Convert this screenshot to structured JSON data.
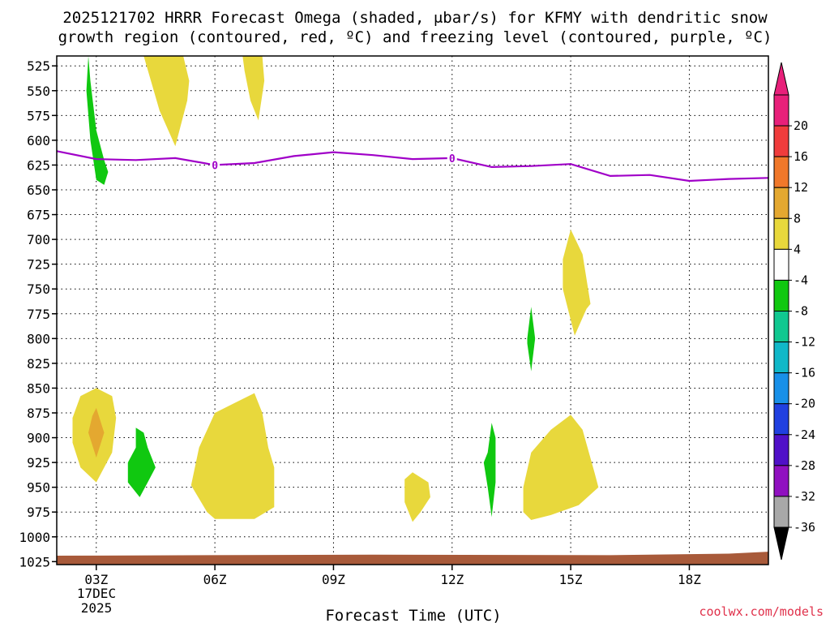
{
  "chart_data": {
    "type": "contour",
    "title_line1": "2025121702 HRRR Forecast Omega (shaded, μbar/s) for KFMY with dendritic snow",
    "title_line2": "growth region (contoured, red, ºC) and freezing level (contoured, purple, ºC)",
    "xlabel": "Forecast Time (UTC)",
    "x_ticks": [
      "03Z",
      "06Z",
      "09Z",
      "12Z",
      "15Z",
      "18Z"
    ],
    "x_tick_hours": [
      3,
      6,
      9,
      12,
      15,
      18
    ],
    "x_range_hours": [
      2.0,
      20.0
    ],
    "date_label_line1": "17DEC",
    "date_label_line2": "2025",
    "y_ticks": [
      "525",
      "550",
      "575",
      "600",
      "625",
      "650",
      "675",
      "700",
      "725",
      "750",
      "775",
      "800",
      "825",
      "850",
      "875",
      "900",
      "925",
      "950",
      "975",
      "1000",
      "1025"
    ],
    "y_range_hpa": [
      515,
      1028
    ],
    "colorbar": {
      "labels": [
        "20",
        "16",
        "12",
        "8",
        "4",
        "-4",
        "-8",
        "-12",
        "-16",
        "-20",
        "-24",
        "-28",
        "-32",
        "-36"
      ],
      "bins": [
        {
          "lo": 20,
          "hi": 24,
          "color": "#e8207a"
        },
        {
          "lo": 16,
          "hi": 20,
          "color": "#f03c3c"
        },
        {
          "lo": 12,
          "hi": 16,
          "color": "#f0782a"
        },
        {
          "lo": 8,
          "hi": 12,
          "color": "#e4a830"
        },
        {
          "lo": 4,
          "hi": 8,
          "color": "#e8d83c"
        },
        {
          "lo": -4,
          "hi": 4,
          "color": "#ffffff"
        },
        {
          "lo": -8,
          "hi": -4,
          "color": "#10c810"
        },
        {
          "lo": -12,
          "hi": -8,
          "color": "#10c890"
        },
        {
          "lo": -16,
          "hi": -12,
          "color": "#10b8c8"
        },
        {
          "lo": -20,
          "hi": -16,
          "color": "#1890e8"
        },
        {
          "lo": -24,
          "hi": -20,
          "color": "#2040e0"
        },
        {
          "lo": -28,
          "hi": -24,
          "color": "#5010c8"
        },
        {
          "lo": -32,
          "hi": -28,
          "color": "#9010c0"
        },
        {
          "lo": -36,
          "hi": -32,
          "color": "#a8a8a8"
        }
      ],
      "top_arrow_color": "#e8207a",
      "bottom_arrow_color": "#000000"
    },
    "freezing_level": {
      "label": "0",
      "color": "#a000c8",
      "hours": [
        2.0,
        3.0,
        4.0,
        5.0,
        6.0,
        7.0,
        8.0,
        9.0,
        10.0,
        11.0,
        12.0,
        13.0,
        14.0,
        15.0,
        16.0,
        17.0,
        18.0,
        19.0,
        20.0
      ],
      "pressure": [
        611,
        619,
        620,
        618,
        625,
        623,
        616,
        612,
        615,
        619,
        618,
        627,
        626,
        624,
        636,
        635,
        641,
        639,
        638
      ],
      "label_hours": [
        6.0,
        12.0
      ]
    },
    "omega_regions": [
      {
        "bin": "-8..-4",
        "color": "#10c810",
        "hours": [
          2.8,
          2.85,
          3.0,
          3.2,
          3.3,
          3.2,
          3.0,
          2.85,
          2.75
        ],
        "pressure": [
          515,
          540,
          590,
          620,
          632,
          645,
          640,
          600,
          550
        ]
      },
      {
        "bin": "4..8",
        "color": "#e8d83c",
        "hours": [
          5.2,
          5.35,
          5.3,
          5.0,
          4.6,
          4.2
        ],
        "pressure": [
          515,
          540,
          560,
          606,
          570,
          515
        ]
      },
      {
        "bin": "4..8",
        "color": "#e8d83c",
        "hours": [
          7.2,
          7.25,
          7.1,
          6.9,
          6.75,
          6.7
        ],
        "pressure": [
          515,
          540,
          580,
          560,
          530,
          515
        ]
      },
      {
        "bin": "4..8",
        "color": "#e8d83c",
        "hours": [
          2.4,
          2.6,
          3.0,
          3.4,
          3.5,
          3.4,
          3.0,
          2.6,
          2.4
        ],
        "pressure": [
          880,
          858,
          850,
          858,
          880,
          915,
          945,
          930,
          905
        ]
      },
      {
        "bin": "8..12",
        "color": "#e4a830",
        "hours": [
          2.8,
          2.9,
          3.0,
          3.2,
          3.0,
          2.8
        ],
        "pressure": [
          895,
          878,
          870,
          895,
          920,
          895
        ]
      },
      {
        "bin": "-8..-4",
        "color": "#10c810",
        "hours": [
          4.0,
          4.0,
          4.2,
          4.3,
          4.5,
          4.3,
          4.1,
          3.8,
          3.8
        ],
        "pressure": [
          910,
          890,
          895,
          910,
          930,
          945,
          960,
          945,
          925
        ]
      },
      {
        "bin": "4..8",
        "color": "#e8d83c",
        "hours": [
          5.4,
          5.6,
          6.0,
          6.5,
          7.0,
          7.2,
          7.35,
          7.5,
          7.5,
          7.0,
          6.5,
          6.0,
          5.8,
          5.4
        ],
        "pressure": [
          948,
          910,
          875,
          865,
          855,
          875,
          910,
          930,
          970,
          982,
          982,
          982,
          975,
          948
        ]
      },
      {
        "bin": "4..8",
        "color": "#e8d83c",
        "hours": [
          10.8,
          11.0,
          11.4,
          11.45,
          11.2,
          11.0,
          10.8
        ],
        "pressure": [
          942,
          935,
          945,
          960,
          975,
          985,
          965
        ]
      },
      {
        "bin": "-8..-4",
        "color": "#10c810",
        "hours": [
          12.9,
          13.0,
          13.1,
          13.1,
          13.0,
          12.9,
          12.8
        ],
        "pressure": [
          915,
          885,
          900,
          945,
          980,
          950,
          925
        ]
      },
      {
        "bin": "-8..-4",
        "color": "#10c810",
        "hours": [
          13.9,
          14.0,
          14.1,
          14.0,
          13.9
        ],
        "pressure": [
          800,
          768,
          800,
          833,
          805
        ]
      },
      {
        "bin": "4..8",
        "color": "#e8d83c",
        "hours": [
          14.8,
          15.0,
          15.3,
          15.5,
          15.4,
          15.1,
          14.8
        ],
        "pressure": [
          720,
          690,
          715,
          765,
          770,
          797,
          750
        ]
      },
      {
        "bin": "4..8",
        "color": "#e8d83c",
        "hours": [
          13.8,
          14.0,
          14.5,
          15.0,
          15.3,
          15.6,
          15.7,
          15.2,
          14.5,
          14.0,
          13.8
        ],
        "pressure": [
          950,
          915,
          892,
          877,
          892,
          935,
          950,
          968,
          978,
          983,
          975
        ]
      }
    ],
    "ground_color": "#a85a3a",
    "credit": "coolwx.com/models"
  }
}
